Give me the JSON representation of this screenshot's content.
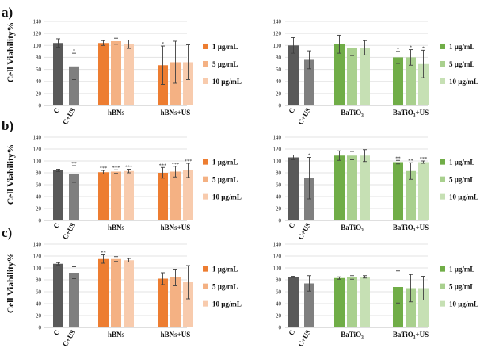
{
  "figure": {
    "ylabel": "Cell Viability%",
    "ylim": [
      0,
      140
    ],
    "yticks": [
      0,
      20,
      40,
      60,
      80,
      100,
      120,
      140
    ],
    "colors": {
      "control": "#595959",
      "control_us": "#7f7f7f",
      "orange": [
        "#ed7d31",
        "#f4b183",
        "#f8cbad"
      ],
      "green": [
        "#70ad47",
        "#a9d08e",
        "#c6e0b4"
      ],
      "error": "#404040"
    }
  },
  "chart_data": [
    {
      "panel_label": "a)",
      "type": "bar",
      "palette": "orange",
      "categories": [
        "C",
        "C+US",
        "hBNs",
        "hBNs+US"
      ],
      "legend": [
        "1 µg/mL",
        "5 µg/mL",
        "10 µg/mL"
      ],
      "controls": [
        {
          "label": "C",
          "value": 104,
          "err": 7,
          "sig": ""
        },
        {
          "label": "C+US",
          "value": 65,
          "err": 22,
          "sig": "*"
        }
      ],
      "groups": [
        {
          "label": "hBNs",
          "bars": [
            {
              "value": 104,
              "err": 4,
              "sig": ""
            },
            {
              "value": 107,
              "err": 5,
              "sig": ""
            },
            {
              "value": 102,
              "err": 7,
              "sig": ""
            }
          ]
        },
        {
          "label": "hBNs+US",
          "bars": [
            {
              "value": 67,
              "err": 32,
              "sig": "*"
            },
            {
              "value": 72,
              "err": 35,
              "sig": ""
            },
            {
              "value": 72,
              "err": 29,
              "sig": ""
            }
          ]
        }
      ]
    },
    {
      "panel_label": "",
      "type": "bar",
      "palette": "green",
      "categories": [
        "C",
        "C+US",
        "BaTiO₃",
        "BaTiO₃+US"
      ],
      "legend": [
        "1 µg/mL",
        "5 µg/mL",
        "10 µg/mL"
      ],
      "controls": [
        {
          "label": "C",
          "value": 100,
          "err": 13,
          "sig": ""
        },
        {
          "label": "C+US",
          "value": 76,
          "err": 15,
          "sig": ""
        }
      ],
      "groups": [
        {
          "label": "BaTiO₃",
          "bars": [
            {
              "value": 102,
              "err": 15,
              "sig": ""
            },
            {
              "value": 96,
              "err": 13,
              "sig": ""
            },
            {
              "value": 96,
              "err": 12,
              "sig": ""
            }
          ]
        },
        {
          "label": "BaTiO₃+US",
          "bars": [
            {
              "value": 80,
              "err": 10,
              "sig": "*"
            },
            {
              "value": 80,
              "err": 13,
              "sig": "*"
            },
            {
              "value": 69,
              "err": 23,
              "sig": "*"
            }
          ]
        }
      ]
    },
    {
      "panel_label": "b)",
      "type": "bar",
      "palette": "orange",
      "categories": [
        "C",
        "C+US",
        "hBNs",
        "hBNs+US"
      ],
      "legend": [
        "1 µg/mL",
        "5 µg/mL",
        "10 µg/mL"
      ],
      "controls": [
        {
          "label": "C",
          "value": 84,
          "err": 2,
          "sig": ""
        },
        {
          "label": "C+US",
          "value": 78,
          "err": 14,
          "sig": "**"
        }
      ],
      "groups": [
        {
          "label": "hBNs",
          "bars": [
            {
              "value": 81,
              "err": 3,
              "sig": "***"
            },
            {
              "value": 82,
              "err": 3,
              "sig": "***"
            },
            {
              "value": 83,
              "err": 3,
              "sig": "***"
            }
          ]
        },
        {
          "label": "hBNs+US",
          "bars": [
            {
              "value": 80,
              "err": 9,
              "sig": "***"
            },
            {
              "value": 82,
              "err": 9,
              "sig": "***"
            },
            {
              "value": 84,
              "err": 12,
              "sig": "***"
            }
          ]
        }
      ]
    },
    {
      "panel_label": "",
      "type": "bar",
      "palette": "green",
      "categories": [
        "C",
        "C+US",
        "BaTiO₃",
        "BaTiO₃+US"
      ],
      "legend": [
        "1 µg/mL",
        "5 µg/mL",
        "10 µg/mL"
      ],
      "controls": [
        {
          "label": "C",
          "value": 106,
          "err": 4,
          "sig": ""
        },
        {
          "label": "C+US",
          "value": 71,
          "err": 35,
          "sig": "*"
        }
      ],
      "groups": [
        {
          "label": "BaTiO₃",
          "bars": [
            {
              "value": 109,
              "err": 8,
              "sig": ""
            },
            {
              "value": 109,
              "err": 7,
              "sig": ""
            },
            {
              "value": 109,
              "err": 10,
              "sig": ""
            }
          ]
        },
        {
          "label": "BaTiO₃+US",
          "bars": [
            {
              "value": 98,
              "err": 3,
              "sig": "**"
            },
            {
              "value": 83,
              "err": 14,
              "sig": "**"
            },
            {
              "value": 98,
              "err": 2,
              "sig": "***"
            }
          ]
        }
      ]
    },
    {
      "panel_label": "c)",
      "type": "bar",
      "palette": "orange",
      "categories": [
        "C",
        "C+US",
        "hBNs",
        "hBNs+US"
      ],
      "legend": [
        "1 µg/mL",
        "5 µg/mL",
        "10 µg/mL"
      ],
      "controls": [
        {
          "label": "C",
          "value": 107,
          "err": 2,
          "sig": ""
        },
        {
          "label": "C+US",
          "value": 92,
          "err": 10,
          "sig": ""
        }
      ],
      "groups": [
        {
          "label": "hBNs",
          "bars": [
            {
              "value": 115,
              "err": 7,
              "sig": "**"
            },
            {
              "value": 115,
              "err": 4,
              "sig": ""
            },
            {
              "value": 113,
              "err": 3,
              "sig": ""
            }
          ]
        },
        {
          "label": "hBNs+US",
          "bars": [
            {
              "value": 82,
              "err": 10,
              "sig": ""
            },
            {
              "value": 84,
              "err": 14,
              "sig": ""
            },
            {
              "value": 76,
              "err": 28,
              "sig": ""
            }
          ]
        }
      ]
    },
    {
      "panel_label": "",
      "type": "bar",
      "palette": "green",
      "categories": [
        "C",
        "C+US",
        "BaTiO₃",
        "BaTiO₃+US"
      ],
      "legend": [
        "1 µg/mL",
        "5 µg/mL",
        "10 µg/mL"
      ],
      "controls": [
        {
          "label": "C",
          "value": 85,
          "err": 1,
          "sig": ""
        },
        {
          "label": "C+US",
          "value": 74,
          "err": 13,
          "sig": ""
        }
      ],
      "groups": [
        {
          "label": "BaTiO₃",
          "bars": [
            {
              "value": 83,
              "err": 2,
              "sig": ""
            },
            {
              "value": 84,
              "err": 3,
              "sig": ""
            },
            {
              "value": 85,
              "err": 2,
              "sig": ""
            }
          ]
        },
        {
          "label": "BaTiO₃+US",
          "bars": [
            {
              "value": 68,
              "err": 27,
              "sig": ""
            },
            {
              "value": 66,
              "err": 23,
              "sig": ""
            },
            {
              "value": 66,
              "err": 20,
              "sig": ""
            }
          ]
        }
      ]
    }
  ]
}
